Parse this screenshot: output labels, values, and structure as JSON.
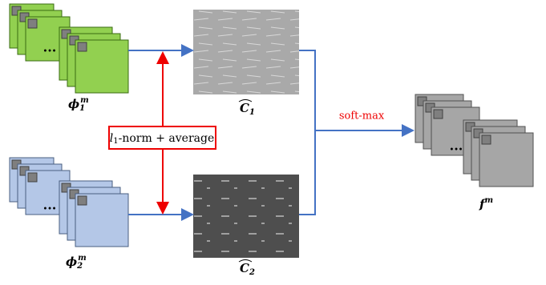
{
  "inputs": [
    {
      "label": {
        "base": "ϕ",
        "sub": "1",
        "sup": "m"
      },
      "ellipsis": "..."
    },
    {
      "label": {
        "base": "ϕ",
        "sub": "2",
        "sup": "m"
      },
      "ellipsis": "..."
    }
  ],
  "maps": [
    {
      "label": {
        "base": "C",
        "sub": "1"
      }
    },
    {
      "label": {
        "base": "C",
        "sub": "2"
      }
    }
  ],
  "operation": {
    "base": "l",
    "sub": "1",
    "rest": "-norm + average"
  },
  "fusion": "soft-max",
  "output": {
    "label": {
      "base": "f",
      "sup": "m"
    },
    "ellipsis": "..."
  }
}
